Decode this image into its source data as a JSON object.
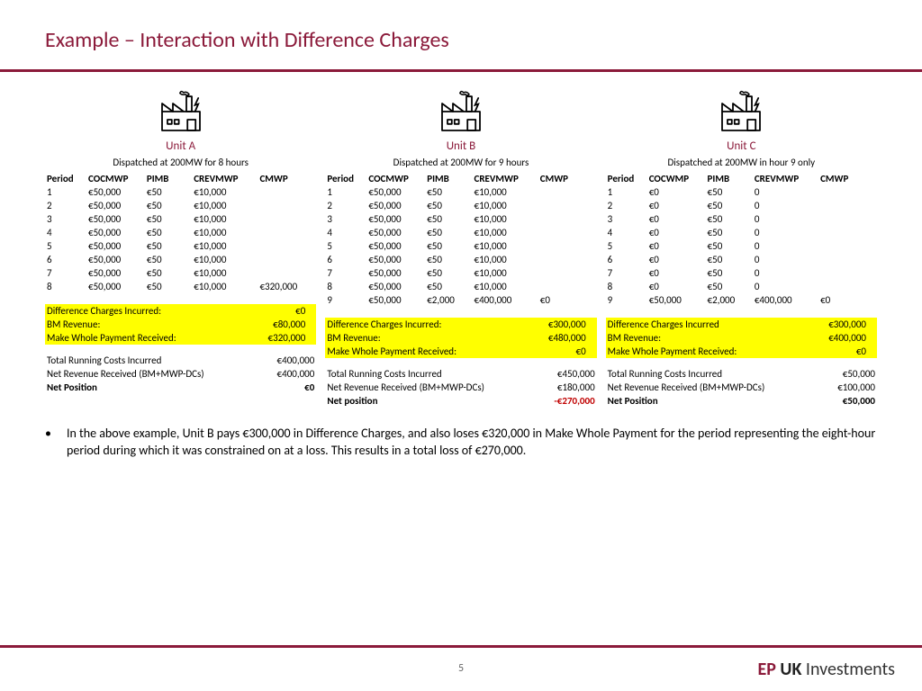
{
  "title": "Example – Interaction with Difference Charges",
  "page_number": "5",
  "logo": {
    "ep": "EP",
    "uk": "UK",
    "rest": "Investments"
  },
  "table_headers": [
    "Period",
    "COCMWP",
    "PIMB",
    "CREVMWP",
    "CMWP"
  ],
  "table_headers_c": [
    "Period",
    "COCWMP",
    "PIMB",
    "CREVMWP",
    "CMWP"
  ],
  "hl_labels": [
    "Difference Charges Incurred:",
    "BM Revenue:",
    "Make Whole Payment Received:"
  ],
  "hl_labels_c": [
    "Difference Charges Incurred",
    "BM Revenue:",
    "Make Whole Payment Received:"
  ],
  "sum_labels": [
    "Total Running Costs Incurred",
    "Net Revenue Received (BM+MWP-DCs)"
  ],
  "net_label": "Net Position",
  "net_label_b": "Net position",
  "units": {
    "a": {
      "label": "Unit A",
      "dispatch": "Dispatched at 200MW for 8 hours",
      "rows": [
        {
          "p": "1",
          "coc": "€50,000",
          "pimb": "€50",
          "crev": "€10,000",
          "cmwp": ""
        },
        {
          "p": "2",
          "coc": "€50,000",
          "pimb": "€50",
          "crev": "€10,000",
          "cmwp": ""
        },
        {
          "p": "3",
          "coc": "€50,000",
          "pimb": "€50",
          "crev": "€10,000",
          "cmwp": ""
        },
        {
          "p": "4",
          "coc": "€50,000",
          "pimb": "€50",
          "crev": "€10,000",
          "cmwp": ""
        },
        {
          "p": "5",
          "coc": "€50,000",
          "pimb": "€50",
          "crev": "€10,000",
          "cmwp": ""
        },
        {
          "p": "6",
          "coc": "€50,000",
          "pimb": "€50",
          "crev": "€10,000",
          "cmwp": ""
        },
        {
          "p": "7",
          "coc": "€50,000",
          "pimb": "€50",
          "crev": "€10,000",
          "cmwp": ""
        },
        {
          "p": "8",
          "coc": "€50,000",
          "pimb": "€50",
          "crev": "€10,000",
          "cmwp": "€320,000"
        }
      ],
      "hl": [
        "€0",
        "€80,000",
        "€320,000"
      ],
      "sum": [
        "€400,000",
        "€400,000"
      ],
      "net": "€0",
      "net_neg": false
    },
    "b": {
      "label": "Unit B",
      "dispatch": "Dispatched at 200MW for 9 hours",
      "rows": [
        {
          "p": "1",
          "coc": "€50,000",
          "pimb": "€50",
          "crev": "€10,000",
          "cmwp": ""
        },
        {
          "p": "2",
          "coc": "€50,000",
          "pimb": "€50",
          "crev": "€10,000",
          "cmwp": ""
        },
        {
          "p": "3",
          "coc": "€50,000",
          "pimb": "€50",
          "crev": "€10,000",
          "cmwp": ""
        },
        {
          "p": "4",
          "coc": "€50,000",
          "pimb": "€50",
          "crev": "€10,000",
          "cmwp": ""
        },
        {
          "p": "5",
          "coc": "€50,000",
          "pimb": "€50",
          "crev": "€10,000",
          "cmwp": ""
        },
        {
          "p": "6",
          "coc": "€50,000",
          "pimb": "€50",
          "crev": "€10,000",
          "cmwp": ""
        },
        {
          "p": "7",
          "coc": "€50,000",
          "pimb": "€50",
          "crev": "€10,000",
          "cmwp": ""
        },
        {
          "p": "8",
          "coc": "€50,000",
          "pimb": "€50",
          "crev": "€10,000",
          "cmwp": ""
        },
        {
          "p": "9",
          "coc": "€50,000",
          "pimb": "€2,000",
          "crev": "€400,000",
          "cmwp": "€0"
        }
      ],
      "hl": [
        "€300,000",
        "€480,000",
        "€0"
      ],
      "sum": [
        "€450,000",
        "€180,000"
      ],
      "net": "-€270,000",
      "net_neg": true
    },
    "c": {
      "label": "Unit C",
      "dispatch": "Dispatched at 200MW in hour 9 only",
      "rows": [
        {
          "p": "1",
          "coc": "€0",
          "pimb": "€50",
          "crev": "0",
          "cmwp": ""
        },
        {
          "p": "2",
          "coc": "€0",
          "pimb": "€50",
          "crev": "0",
          "cmwp": ""
        },
        {
          "p": "3",
          "coc": "€0",
          "pimb": "€50",
          "crev": "0",
          "cmwp": ""
        },
        {
          "p": "4",
          "coc": "€0",
          "pimb": "€50",
          "crev": "0",
          "cmwp": ""
        },
        {
          "p": "5",
          "coc": "€0",
          "pimb": "€50",
          "crev": "0",
          "cmwp": ""
        },
        {
          "p": "6",
          "coc": "€0",
          "pimb": "€50",
          "crev": "0",
          "cmwp": ""
        },
        {
          "p": "7",
          "coc": "€0",
          "pimb": "€50",
          "crev": "0",
          "cmwp": ""
        },
        {
          "p": "8",
          "coc": "€0",
          "pimb": "€50",
          "crev": "0",
          "cmwp": ""
        },
        {
          "p": "9",
          "coc": "€50,000",
          "pimb": "€2,000",
          "crev": "€400,000",
          "cmwp": "€0"
        }
      ],
      "hl": [
        "€300,000",
        "€400,000",
        "€0"
      ],
      "sum": [
        "€50,000",
        "€100,000"
      ],
      "net": "€50,000",
      "net_neg": false
    }
  },
  "bullet": "In the above example, Unit B pays €300,000 in Difference Charges, and also loses €320,000 in Make Whole Payment for the period representing the eight-hour period during which it was constrained on at a loss. This results in a total loss of €270,000."
}
